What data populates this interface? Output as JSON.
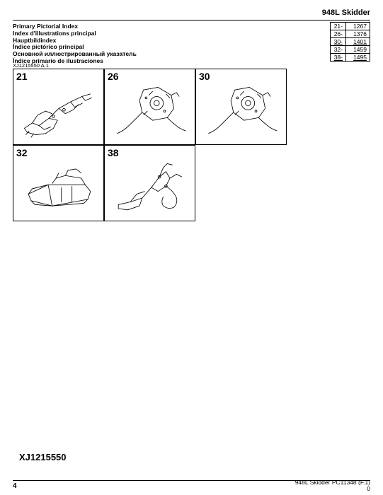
{
  "header": {
    "product": "948L  Skidder"
  },
  "titles": [
    "Primary Pictorial Index",
    "Index d'illustrations principal",
    "Hauptbildindex",
    "Índice pictórico principal",
    "Основной иллюстрированный указатель",
    "Índice primario de ilustraciones"
  ],
  "ref_rows": [
    {
      "k": "21-",
      "v": "1267",
      "underline": false
    },
    {
      "k": "26-",
      "v": "1376",
      "underline": false
    },
    {
      "k": "30-",
      "v": "1401",
      "underline": true
    },
    {
      "k": "32-",
      "v": "1459",
      "underline": false
    },
    {
      "k": "38-",
      "v": "1495",
      "underline": true
    }
  ],
  "fig_code": "XJ1215550 A.1",
  "cells": {
    "r1": [
      {
        "num": "21",
        "svg": "chassis"
      },
      {
        "num": "26",
        "svg": "mech"
      },
      {
        "num": "30",
        "svg": "mech"
      }
    ],
    "r2": [
      {
        "num": "32",
        "svg": "blade"
      },
      {
        "num": "38",
        "svg": "arm"
      }
    ]
  },
  "big_code": "XJ1215550",
  "footer": {
    "page": "4",
    "right1": "948L Skidder    PC11348    (F.1)",
    "right2": "0"
  },
  "svg_style": {
    "stroke": "#000000",
    "stroke_width": 0.9,
    "fill": "none"
  }
}
